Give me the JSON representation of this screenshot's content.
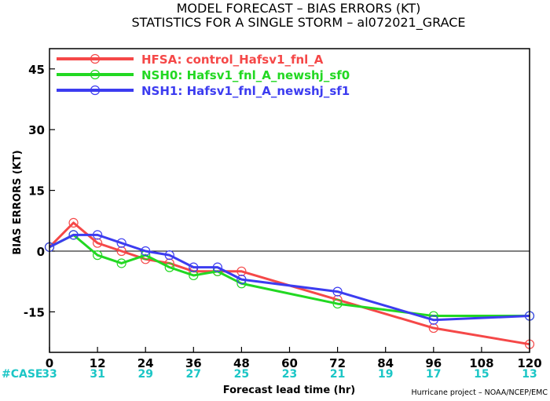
{
  "title": "MODEL FORECAST – BIAS ERRORS (KT)",
  "subtitle": "STATISTICS FOR A SINGLE STORM – al072021_GRACE",
  "footer_credit": "Hurricane project – NOAA/NCEP/EMC",
  "case_label": "#CASE",
  "colors": {
    "axis": "#000000",
    "case_text": "#1cc6c6",
    "zero_line": "#000000"
  },
  "chart_data": {
    "type": "line",
    "xlabel": "Forecast lead time (hr)",
    "ylabel": "BIAS ERRORS (KT)",
    "xlim": [
      0,
      120
    ],
    "ylim": [
      -25,
      50
    ],
    "xticks": [
      0,
      12,
      24,
      36,
      48,
      60,
      72,
      84,
      96,
      108,
      120
    ],
    "yticks": [
      -15,
      0,
      15,
      30,
      45
    ],
    "zero_line": true,
    "legend_position": "top-left",
    "cases": [
      {
        "x": 0,
        "n": 33
      },
      {
        "x": 12,
        "n": 31
      },
      {
        "x": 24,
        "n": 29
      },
      {
        "x": 36,
        "n": 27
      },
      {
        "x": 48,
        "n": 25
      },
      {
        "x": 60,
        "n": 23
      },
      {
        "x": 72,
        "n": 21
      },
      {
        "x": 84,
        "n": 19
      },
      {
        "x": 96,
        "n": 17
      },
      {
        "x": 108,
        "n": 15
      },
      {
        "x": 120,
        "n": 13
      }
    ],
    "series": [
      {
        "name": "HFSA: control_Hafsv1_fnl_A",
        "color": "#f54848",
        "x": [
          0,
          6,
          12,
          18,
          24,
          30,
          36,
          42,
          48,
          72,
          96,
          120
        ],
        "y": [
          1,
          7,
          2,
          0,
          -2,
          -3,
          -5,
          -5,
          -5,
          -12,
          -19,
          -23
        ]
      },
      {
        "name": "NSH0: Hafsv1_fnl_A_newshj_sf0",
        "color": "#22d822",
        "x": [
          0,
          6,
          12,
          18,
          24,
          30,
          36,
          42,
          48,
          72,
          96,
          120
        ],
        "y": [
          1,
          4,
          -1,
          -3,
          -1,
          -4,
          -6,
          -5,
          -8,
          -13,
          -16,
          -16
        ]
      },
      {
        "name": "NSH1: Hafsv1_fnl_A_newshj_sf1",
        "color": "#3c3cf0",
        "x": [
          0,
          6,
          12,
          18,
          24,
          30,
          36,
          42,
          48,
          72,
          96,
          120
        ],
        "y": [
          1,
          4,
          4,
          2,
          0,
          -1,
          -4,
          -4,
          -7,
          -10,
          -17,
          -16
        ]
      }
    ]
  }
}
